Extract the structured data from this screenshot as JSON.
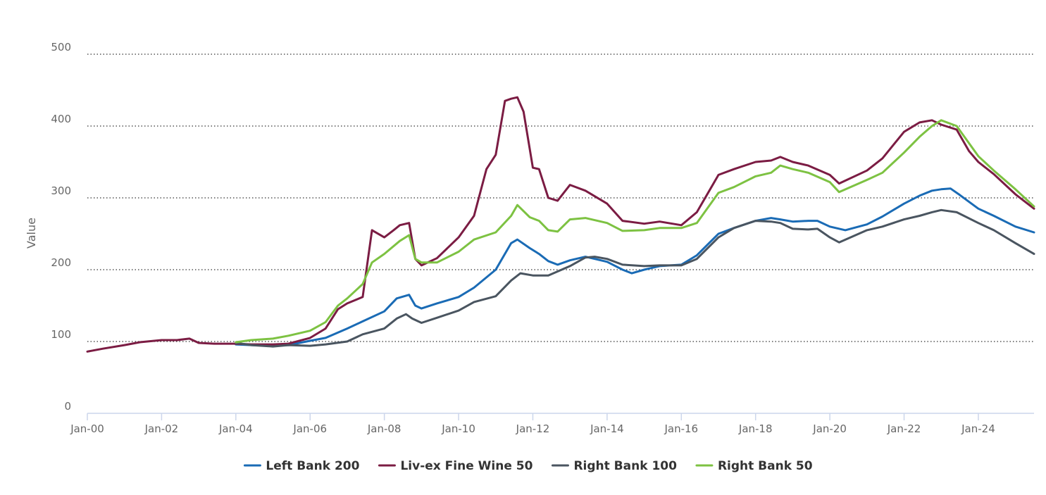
{
  "chart_data": {
    "type": "line",
    "title": "",
    "xlabel": "",
    "ylabel": "Value",
    "ylim": [
      0,
      500
    ],
    "xlim": [
      "2000-01",
      "2025-07"
    ],
    "grid": true,
    "grid_style": "dotted horizontal",
    "legend_position": "bottom-center",
    "y_ticks": [
      "0",
      "100",
      "200",
      "300",
      "400",
      "500"
    ],
    "x_ticks": [
      {
        "label": "Jan-00",
        "date": "2000-01"
      },
      {
        "label": "Jan-02",
        "date": "2002-01"
      },
      {
        "label": "Jan-04",
        "date": "2004-01"
      },
      {
        "label": "Jan-06",
        "date": "2006-01"
      },
      {
        "label": "Jan-08",
        "date": "2008-01"
      },
      {
        "label": "Jan-10",
        "date": "2010-01"
      },
      {
        "label": "Jan-12",
        "date": "2012-01"
      },
      {
        "label": "Jan-14",
        "date": "2014-01"
      },
      {
        "label": "Jan-16",
        "date": "2016-01"
      },
      {
        "label": "Jan-18",
        "date": "2018-01"
      },
      {
        "label": "Jan-20",
        "date": "2020-01"
      },
      {
        "label": "Jan-22",
        "date": "2022-01"
      },
      {
        "label": "Jan-24",
        "date": "2024-01"
      }
    ],
    "series": [
      {
        "name": "Left Bank 200",
        "color": "#1a6bb5",
        "points": [
          [
            "2004-01",
            96
          ],
          [
            "2004-06",
            95
          ],
          [
            "2005-01",
            94
          ],
          [
            "2005-06",
            95
          ],
          [
            "2006-01",
            101
          ],
          [
            "2006-06",
            105
          ],
          [
            "2007-01",
            118
          ],
          [
            "2007-06",
            128
          ],
          [
            "2008-01",
            142
          ],
          [
            "2008-05",
            160
          ],
          [
            "2008-09",
            165
          ],
          [
            "2008-11",
            150
          ],
          [
            "2009-01",
            146
          ],
          [
            "2009-06",
            153
          ],
          [
            "2010-01",
            162
          ],
          [
            "2010-06",
            175
          ],
          [
            "2011-01",
            200
          ],
          [
            "2011-06",
            237
          ],
          [
            "2011-08",
            242
          ],
          [
            "2011-12",
            230
          ],
          [
            "2012-03",
            222
          ],
          [
            "2012-06",
            212
          ],
          [
            "2012-09",
            207
          ],
          [
            "2013-01",
            213
          ],
          [
            "2013-06",
            218
          ],
          [
            "2013-10",
            214
          ],
          [
            "2014-01",
            211
          ],
          [
            "2014-06",
            200
          ],
          [
            "2014-09",
            195
          ],
          [
            "2015-01",
            200
          ],
          [
            "2015-06",
            205
          ],
          [
            "2016-01",
            207
          ],
          [
            "2016-06",
            220
          ],
          [
            "2017-01",
            250
          ],
          [
            "2017-06",
            258
          ],
          [
            "2018-01",
            268
          ],
          [
            "2018-06",
            272
          ],
          [
            "2018-09",
            270
          ],
          [
            "2019-01",
            267
          ],
          [
            "2019-06",
            268
          ],
          [
            "2019-09",
            268
          ],
          [
            "2020-01",
            260
          ],
          [
            "2020-06",
            255
          ],
          [
            "2021-01",
            263
          ],
          [
            "2021-06",
            274
          ],
          [
            "2022-01",
            292
          ],
          [
            "2022-06",
            303
          ],
          [
            "2022-10",
            310
          ],
          [
            "2023-01",
            312
          ],
          [
            "2023-04",
            313
          ],
          [
            "2023-07",
            304
          ],
          [
            "2024-01",
            285
          ],
          [
            "2024-06",
            275
          ],
          [
            "2025-01",
            260
          ],
          [
            "2025-07",
            252
          ]
        ]
      },
      {
        "name": "Liv-ex Fine Wine 50",
        "color": "#7b1c43",
        "points": [
          [
            "2000-01",
            86
          ],
          [
            "2000-06",
            90
          ],
          [
            "2001-01",
            95
          ],
          [
            "2001-06",
            99
          ],
          [
            "2002-01",
            102
          ],
          [
            "2002-06",
            102
          ],
          [
            "2002-10",
            104
          ],
          [
            "2003-01",
            98
          ],
          [
            "2003-06",
            97
          ],
          [
            "2004-01",
            97
          ],
          [
            "2004-06",
            96
          ],
          [
            "2005-01",
            96
          ],
          [
            "2005-06",
            97
          ],
          [
            "2006-01",
            105
          ],
          [
            "2006-06",
            118
          ],
          [
            "2006-10",
            145
          ],
          [
            "2007-01",
            153
          ],
          [
            "2007-06",
            162
          ],
          [
            "2007-09",
            255
          ],
          [
            "2008-01",
            245
          ],
          [
            "2008-04",
            255
          ],
          [
            "2008-06",
            262
          ],
          [
            "2008-09",
            265
          ],
          [
            "2008-11",
            215
          ],
          [
            "2009-01",
            206
          ],
          [
            "2009-06",
            216
          ],
          [
            "2010-01",
            245
          ],
          [
            "2010-06",
            275
          ],
          [
            "2010-10",
            340
          ],
          [
            "2011-01",
            360
          ],
          [
            "2011-04",
            435
          ],
          [
            "2011-06",
            438
          ],
          [
            "2011-08",
            440
          ],
          [
            "2011-10",
            420
          ],
          [
            "2012-01",
            342
          ],
          [
            "2012-03",
            340
          ],
          [
            "2012-06",
            300
          ],
          [
            "2012-09",
            296
          ],
          [
            "2013-01",
            318
          ],
          [
            "2013-06",
            310
          ],
          [
            "2014-01",
            292
          ],
          [
            "2014-06",
            268
          ],
          [
            "2015-01",
            264
          ],
          [
            "2015-06",
            267
          ],
          [
            "2016-01",
            262
          ],
          [
            "2016-06",
            280
          ],
          [
            "2017-01",
            332
          ],
          [
            "2017-06",
            340
          ],
          [
            "2018-01",
            350
          ],
          [
            "2018-06",
            352
          ],
          [
            "2018-09",
            357
          ],
          [
            "2019-01",
            350
          ],
          [
            "2019-06",
            345
          ],
          [
            "2020-01",
            332
          ],
          [
            "2020-04",
            320
          ],
          [
            "2021-01",
            338
          ],
          [
            "2021-06",
            355
          ],
          [
            "2022-01",
            392
          ],
          [
            "2022-06",
            405
          ],
          [
            "2022-10",
            408
          ],
          [
            "2023-01",
            402
          ],
          [
            "2023-06",
            395
          ],
          [
            "2023-10",
            365
          ],
          [
            "2024-01",
            350
          ],
          [
            "2024-06",
            333
          ],
          [
            "2025-01",
            305
          ],
          [
            "2025-07",
            285
          ]
        ]
      },
      {
        "name": "Right Bank 100",
        "color": "#4a5560",
        "points": [
          [
            "2004-01",
            98
          ],
          [
            "2004-06",
            95
          ],
          [
            "2005-01",
            93
          ],
          [
            "2005-06",
            95
          ],
          [
            "2006-01",
            94
          ],
          [
            "2006-06",
            96
          ],
          [
            "2007-01",
            100
          ],
          [
            "2007-06",
            110
          ],
          [
            "2008-01",
            118
          ],
          [
            "2008-05",
            132
          ],
          [
            "2008-08",
            138
          ],
          [
            "2008-10",
            132
          ],
          [
            "2009-01",
            126
          ],
          [
            "2009-06",
            133
          ],
          [
            "2010-01",
            143
          ],
          [
            "2010-06",
            155
          ],
          [
            "2011-01",
            163
          ],
          [
            "2011-06",
            185
          ],
          [
            "2011-09",
            195
          ],
          [
            "2012-01",
            192
          ],
          [
            "2012-06",
            192
          ],
          [
            "2013-01",
            205
          ],
          [
            "2013-06",
            217
          ],
          [
            "2013-09",
            218
          ],
          [
            "2014-01",
            215
          ],
          [
            "2014-06",
            207
          ],
          [
            "2015-01",
            205
          ],
          [
            "2015-06",
            206
          ],
          [
            "2016-01",
            206
          ],
          [
            "2016-06",
            215
          ],
          [
            "2017-01",
            245
          ],
          [
            "2017-06",
            258
          ],
          [
            "2018-01",
            268
          ],
          [
            "2018-06",
            267
          ],
          [
            "2018-09",
            265
          ],
          [
            "2019-01",
            257
          ],
          [
            "2019-06",
            256
          ],
          [
            "2019-09",
            257
          ],
          [
            "2020-01",
            245
          ],
          [
            "2020-04",
            238
          ],
          [
            "2021-01",
            255
          ],
          [
            "2021-06",
            260
          ],
          [
            "2022-01",
            270
          ],
          [
            "2022-06",
            275
          ],
          [
            "2022-10",
            280
          ],
          [
            "2023-01",
            283
          ],
          [
            "2023-06",
            280
          ],
          [
            "2024-01",
            265
          ],
          [
            "2024-06",
            255
          ],
          [
            "2025-01",
            237
          ],
          [
            "2025-07",
            222
          ]
        ]
      },
      {
        "name": "Right Bank 50",
        "color": "#7dc242",
        "points": [
          [
            "2004-01",
            99
          ],
          [
            "2004-06",
            102
          ],
          [
            "2005-01",
            104
          ],
          [
            "2005-06",
            108
          ],
          [
            "2006-01",
            115
          ],
          [
            "2006-06",
            127
          ],
          [
            "2006-10",
            150
          ],
          [
            "2007-01",
            160
          ],
          [
            "2007-06",
            180
          ],
          [
            "2007-09",
            210
          ],
          [
            "2008-01",
            222
          ],
          [
            "2008-06",
            240
          ],
          [
            "2008-09",
            248
          ],
          [
            "2008-11",
            215
          ],
          [
            "2009-01",
            210
          ],
          [
            "2009-06",
            210
          ],
          [
            "2010-01",
            225
          ],
          [
            "2010-06",
            242
          ],
          [
            "2011-01",
            252
          ],
          [
            "2011-06",
            275
          ],
          [
            "2011-08",
            290
          ],
          [
            "2011-12",
            273
          ],
          [
            "2012-03",
            268
          ],
          [
            "2012-06",
            255
          ],
          [
            "2012-09",
            253
          ],
          [
            "2013-01",
            270
          ],
          [
            "2013-06",
            272
          ],
          [
            "2014-01",
            265
          ],
          [
            "2014-06",
            254
          ],
          [
            "2015-01",
            255
          ],
          [
            "2015-06",
            258
          ],
          [
            "2016-01",
            258
          ],
          [
            "2016-06",
            265
          ],
          [
            "2017-01",
            307
          ],
          [
            "2017-06",
            315
          ],
          [
            "2018-01",
            330
          ],
          [
            "2018-06",
            335
          ],
          [
            "2018-09",
            345
          ],
          [
            "2019-01",
            340
          ],
          [
            "2019-06",
            335
          ],
          [
            "2020-01",
            322
          ],
          [
            "2020-04",
            308
          ],
          [
            "2021-01",
            325
          ],
          [
            "2021-06",
            335
          ],
          [
            "2022-01",
            363
          ],
          [
            "2022-06",
            385
          ],
          [
            "2022-10",
            400
          ],
          [
            "2023-01",
            408
          ],
          [
            "2023-06",
            400
          ],
          [
            "2023-10",
            376
          ],
          [
            "2024-01",
            358
          ],
          [
            "2024-06",
            338
          ],
          [
            "2025-01",
            312
          ],
          [
            "2025-07",
            288
          ]
        ]
      }
    ]
  }
}
